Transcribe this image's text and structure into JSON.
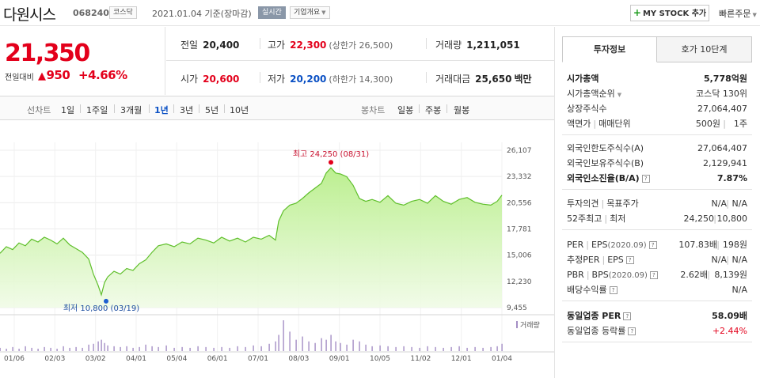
{
  "header": {
    "name": "다원시스",
    "code": "068240",
    "market": "코스닥",
    "date_text": "2021.01.04 기준(장마감)",
    "realtime_label": "실시간",
    "corp_overview_label": "기업개요",
    "mystock_label": "MY STOCK 추가",
    "quick_order_label": "빠른주문"
  },
  "price": {
    "current": "21,350",
    "compare_label": "전일대비",
    "change": "950",
    "rate": "+4.66%"
  },
  "stats": {
    "prev_label": "전일",
    "prev_value": "20,400",
    "high_label": "고가",
    "high_value": "22,300",
    "upper_limit": "(상한가 26,500)",
    "volume_label": "거래량",
    "volume_value": "1,211,051",
    "open_label": "시가",
    "open_value": "20,600",
    "low_label": "저가",
    "low_value": "20,200",
    "lower_limit": "(하한가 14,300)",
    "amount_label": "거래대금",
    "amount_value": "25,650",
    "amount_unit": "백만"
  },
  "toolbar": {
    "line_chart_label": "선차트",
    "periods": [
      "1일",
      "1주일",
      "3개월",
      "1년",
      "3년",
      "5년",
      "10년"
    ],
    "active_period": "1년",
    "candle_label": "봉차트",
    "candles": [
      "일봉",
      "주봉",
      "월봉"
    ]
  },
  "chart_data": {
    "type": "area",
    "title": "",
    "x_ticks": [
      "01/06",
      "02/03",
      "03/02",
      "04/01",
      "05/04",
      "06/01",
      "07/01",
      "08/03",
      "09/01",
      "10/05",
      "11/02",
      "12/01",
      "01/04"
    ],
    "y_ticks": [
      26107,
      23332,
      20556,
      17781,
      15006,
      12230,
      9455
    ],
    "ylim": [
      9455,
      26107
    ],
    "x": [
      0,
      8,
      16,
      24,
      32,
      40,
      48,
      56,
      64,
      72,
      80,
      88,
      96,
      104,
      112,
      118,
      124,
      128,
      132,
      136,
      144,
      152,
      160,
      168,
      176,
      184,
      192,
      200,
      210,
      220,
      230,
      240,
      250,
      260,
      270,
      280,
      290,
      300,
      310,
      320,
      330,
      340,
      348,
      352,
      358,
      366,
      374,
      382,
      390,
      398,
      406,
      412,
      418,
      424,
      430,
      438,
      446,
      454,
      462,
      470,
      480,
      490,
      500,
      510,
      520,
      530,
      540,
      550,
      560,
      570,
      580,
      590,
      600,
      610,
      620,
      628,
      634
    ],
    "values": [
      15200,
      15900,
      15600,
      16300,
      16000,
      16700,
      16400,
      16900,
      16600,
      16200,
      16800,
      16100,
      15700,
      15300,
      14600,
      13000,
      11800,
      10800,
      12100,
      12700,
      13300,
      13000,
      13600,
      13400,
      14100,
      14500,
      15300,
      16000,
      16200,
      15900,
      16400,
      16200,
      16800,
      16600,
      16300,
      16900,
      16500,
      16800,
      16400,
      16900,
      16700,
      17100,
      16600,
      18600,
      19700,
      20300,
      20500,
      21000,
      21600,
      22100,
      22600,
      23700,
      24250,
      23700,
      23600,
      23300,
      22400,
      21000,
      20700,
      20900,
      20600,
      21300,
      20500,
      20300,
      20700,
      20900,
      20500,
      21300,
      20700,
      20400,
      20900,
      21100,
      20600,
      20400,
      20300,
      20700,
      21350
    ],
    "annotations": {
      "high": {
        "label": "최고 24,250 (08/31)",
        "x": 418,
        "value": 24250
      },
      "low": {
        "label": "최저 10,800 (03/19)",
        "x": 128,
        "value": 10800
      }
    },
    "volume_label": "거래량",
    "volume": [
      4,
      3,
      5,
      3,
      6,
      4,
      3,
      5,
      4,
      3,
      6,
      4,
      5,
      4,
      8,
      9,
      12,
      14,
      10,
      7,
      6,
      5,
      6,
      4,
      5,
      8,
      6,
      5,
      7,
      4,
      5,
      4,
      6,
      5,
      4,
      5,
      4,
      6,
      5,
      7,
      6,
      9,
      12,
      20,
      38,
      24,
      14,
      18,
      12,
      10,
      16,
      14,
      20,
      12,
      10,
      8,
      14,
      12,
      8,
      6,
      7,
      6,
      5,
      6,
      5,
      4,
      6,
      5,
      4,
      5,
      6,
      4,
      5,
      4,
      5,
      6,
      9
    ]
  },
  "panel": {
    "tabs": [
      "투자정보",
      "호가 10단계"
    ],
    "market_cap_label": "시가총액",
    "market_cap_value": "5,778억원",
    "rank_label": "시가총액순위",
    "rank_value": "코스닥 130위",
    "shares_label": "상장주식수",
    "shares_value": "27,064,407",
    "par_label": "액면가",
    "unit_label": "매매단위",
    "par_value": "500원",
    "unit_value": "1주",
    "foreign_limit_label": "외국인한도주식수(A)",
    "foreign_limit_value": "27,064,407",
    "foreign_hold_label": "외국인보유주식수(B)",
    "foreign_hold_value": "2,129,941",
    "foreign_rate_label": "외국인소진율(B/A)",
    "foreign_rate_value": "7.87%",
    "opinion_label": "투자의견",
    "target_label": "목표주가",
    "opinion_value": "N/A",
    "target_value": "N/A",
    "wk52_label": "52주최고",
    "wk52_low_label": "최저",
    "wk52_high": "24,250",
    "wk52_low": "10,800",
    "per_label": "PER",
    "eps_label": "EPS",
    "per_year": "(2020.09)",
    "per_value": "107.83배",
    "eps_value": "198원",
    "est_per_label": "추정PER",
    "est_eps_label": "EPS",
    "est_per_value": "N/A",
    "est_eps_value": "N/A",
    "pbr_label": "PBR",
    "bps_label": "BPS",
    "pbr_year": "(2020.09)",
    "pbr_value": "2.62배",
    "bps_value": "8,139원",
    "div_label": "배당수익률",
    "div_value": "N/A",
    "ind_per_label": "동일업종 PER",
    "ind_per_value": "58.09배",
    "ind_rate_label": "동일업종 등락률",
    "ind_rate_value": "+2.44%"
  }
}
